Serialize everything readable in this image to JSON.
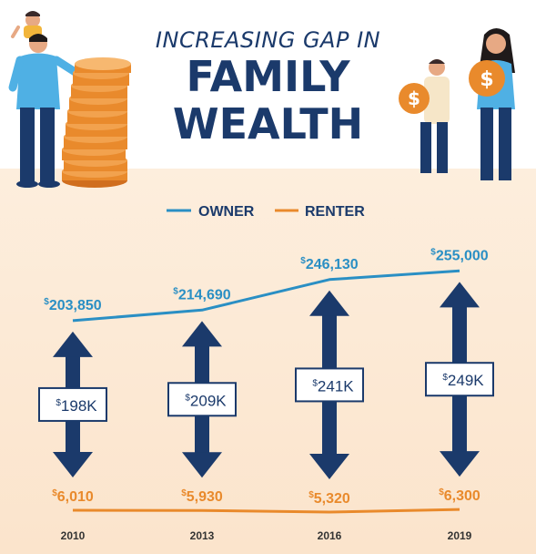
{
  "title": {
    "line1": "INCREASING GAP IN",
    "line2": "FAMILY",
    "line3": "WEALTH"
  },
  "legend": {
    "owner": "OWNER",
    "renter": "RENTER"
  },
  "colors": {
    "owner": "#2a8fc4",
    "renter": "#e98a2c",
    "navy": "#1b3a6b",
    "background_band": "#fbe9d6"
  },
  "chart_data": {
    "type": "line",
    "x": [
      "2010",
      "2013",
      "2016",
      "2019"
    ],
    "series": [
      {
        "name": "OWNER",
        "values": [
          203850,
          214690,
          246130,
          255000
        ],
        "labels": [
          "203,850",
          "214,690",
          "246,130",
          "255,000"
        ]
      },
      {
        "name": "RENTER",
        "values": [
          6010,
          5930,
          5320,
          6300
        ],
        "labels": [
          "6,010",
          "5,930",
          "5,320",
          "6,300"
        ]
      }
    ],
    "gap_labels": [
      "198K",
      "209K",
      "241K",
      "249K"
    ],
    "currency_symbol": "$",
    "legend_position": "top"
  }
}
